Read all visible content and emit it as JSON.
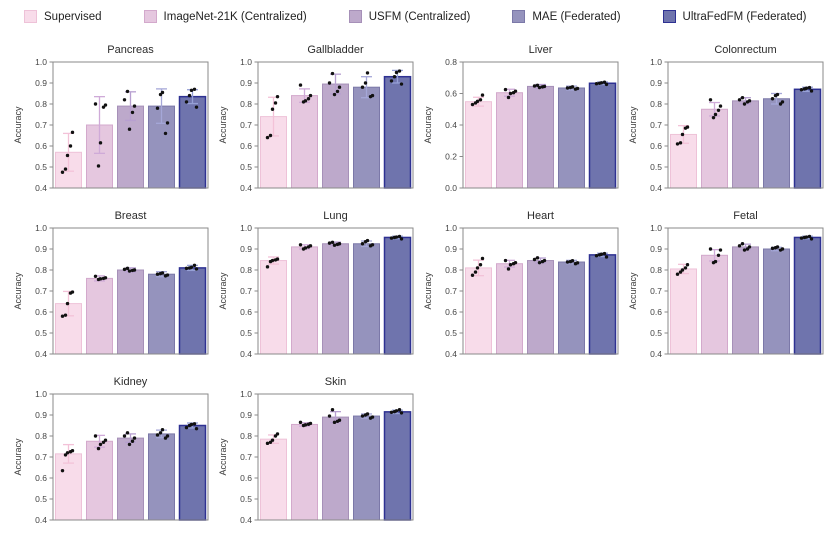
{
  "legend": {
    "items": [
      {
        "label": "Supervised"
      },
      {
        "label": "ImageNet-21K (Centralized)"
      },
      {
        "label": "USFM (Centralized)"
      },
      {
        "label": "MAE (Federated)"
      },
      {
        "label": "UltraFedFM (Federated)"
      }
    ]
  },
  "colors": {
    "fills": [
      "#f8dcea",
      "#e5c7df",
      "#bda9cb",
      "#9593bd",
      "#6f74ad"
    ],
    "edges": [
      "#eec2d8",
      "#d3a9cc",
      "#a690b8",
      "#7b78a8",
      "#2e3192"
    ],
    "error_bars": [
      "#f3c2d8",
      "#cfaad8",
      "#b79fd0",
      "#a5a7d8",
      "#96a0d6"
    ],
    "points": "#111111",
    "spine": "#8a8a8a",
    "tick_text": "#444444"
  },
  "chart_data": {
    "type": "bar",
    "ylabel": "Accuracy",
    "series_labels": [
      "Supervised",
      "ImageNet-21K (Centralized)",
      "USFM (Centralized)",
      "MAE (Federated)",
      "UltraFedFM (Federated)"
    ],
    "organs": [
      {
        "title": "Pancreas",
        "ylim": [
          0.4,
          1.0
        ],
        "yticks": [
          "0.4",
          "0.5",
          "0.6",
          "0.7",
          "0.8",
          "0.9",
          "1.0"
        ],
        "values": [
          0.57,
          0.7,
          0.79,
          0.79,
          0.835
        ],
        "errors": [
          0.09,
          0.135,
          0.068,
          0.082,
          0.033
        ],
        "points": [
          [
            0.475,
            0.49,
            0.555,
            0.6,
            0.665
          ],
          [
            0.505,
            0.615,
            0.785,
            0.795,
            0.8
          ],
          [
            0.68,
            0.76,
            0.79,
            0.82,
            0.86
          ],
          [
            0.66,
            0.71,
            0.78,
            0.845,
            0.855
          ],
          [
            0.785,
            0.81,
            0.84,
            0.865,
            0.87
          ]
        ]
      },
      {
        "title": "Gallbladder",
        "ylim": [
          0.4,
          1.0
        ],
        "yticks": [
          "0.4",
          "0.5",
          "0.6",
          "0.7",
          "0.8",
          "0.9",
          "1.0"
        ],
        "values": [
          0.74,
          0.84,
          0.895,
          0.88,
          0.93
        ],
        "errors": [
          0.092,
          0.032,
          0.047,
          0.05,
          0.03
        ],
        "points": [
          [
            0.64,
            0.65,
            0.775,
            0.805,
            0.835
          ],
          [
            0.81,
            0.815,
            0.825,
            0.84,
            0.89
          ],
          [
            0.845,
            0.86,
            0.88,
            0.9,
            0.945
          ],
          [
            0.835,
            0.84,
            0.88,
            0.9,
            0.948
          ],
          [
            0.895,
            0.91,
            0.93,
            0.95,
            0.957
          ]
        ]
      },
      {
        "title": "Liver",
        "ylim": [
          0.0,
          0.8
        ],
        "yticks": [
          "0.0",
          "0.2",
          "0.4",
          "0.6",
          "0.8"
        ],
        "values": [
          0.548,
          0.605,
          0.645,
          0.635,
          0.665
        ],
        "errors": [
          0.028,
          0.022,
          0.012,
          0.012,
          0.008
        ],
        "points": [
          [
            0.53,
            0.54,
            0.55,
            0.56,
            0.59
          ],
          [
            0.575,
            0.6,
            0.605,
            0.615,
            0.625
          ],
          [
            0.638,
            0.642,
            0.645,
            0.648,
            0.652
          ],
          [
            0.628,
            0.632,
            0.635,
            0.638,
            0.642
          ],
          [
            0.658,
            0.662,
            0.665,
            0.668,
            0.672
          ]
        ]
      },
      {
        "title": "Colonrectum",
        "ylim": [
          0.4,
          1.0
        ],
        "yticks": [
          "0.4",
          "0.5",
          "0.6",
          "0.7",
          "0.8",
          "0.9",
          "1.0"
        ],
        "values": [
          0.655,
          0.775,
          0.815,
          0.825,
          0.87
        ],
        "errors": [
          0.042,
          0.032,
          0.015,
          0.025,
          0.01
        ],
        "points": [
          [
            0.61,
            0.615,
            0.655,
            0.685,
            0.69
          ],
          [
            0.735,
            0.75,
            0.77,
            0.79,
            0.82
          ],
          [
            0.8,
            0.81,
            0.815,
            0.82,
            0.83
          ],
          [
            0.8,
            0.81,
            0.825,
            0.84,
            0.845
          ],
          [
            0.862,
            0.868,
            0.872,
            0.875,
            0.878
          ]
        ]
      },
      {
        "title": "Breast",
        "ylim": [
          0.4,
          1.0
        ],
        "yticks": [
          "0.4",
          "0.5",
          "0.6",
          "0.7",
          "0.8",
          "0.9",
          "1.0"
        ],
        "values": [
          0.64,
          0.76,
          0.8,
          0.78,
          0.81
        ],
        "errors": [
          0.058,
          0.012,
          0.01,
          0.012,
          0.012
        ],
        "points": [
          [
            0.58,
            0.585,
            0.64,
            0.69,
            0.695
          ],
          [
            0.755,
            0.758,
            0.76,
            0.763,
            0.77
          ],
          [
            0.795,
            0.798,
            0.8,
            0.803,
            0.808
          ],
          [
            0.772,
            0.776,
            0.78,
            0.783,
            0.786
          ],
          [
            0.805,
            0.808,
            0.81,
            0.813,
            0.822
          ]
        ]
      },
      {
        "title": "Lung",
        "ylim": [
          0.4,
          1.0
        ],
        "yticks": [
          "0.4",
          "0.5",
          "0.6",
          "0.7",
          "0.8",
          "0.9",
          "1.0"
        ],
        "values": [
          0.845,
          0.91,
          0.925,
          0.925,
          0.955
        ],
        "errors": [
          0.017,
          0.01,
          0.008,
          0.013,
          0.006
        ],
        "points": [
          [
            0.815,
            0.84,
            0.845,
            0.848,
            0.852
          ],
          [
            0.9,
            0.905,
            0.91,
            0.915,
            0.92
          ],
          [
            0.918,
            0.922,
            0.925,
            0.928,
            0.932
          ],
          [
            0.915,
            0.92,
            0.925,
            0.935,
            0.94
          ],
          [
            0.948,
            0.952,
            0.955,
            0.957,
            0.96
          ]
        ]
      },
      {
        "title": "Heart",
        "ylim": [
          0.4,
          1.0
        ],
        "yticks": [
          "0.4",
          "0.5",
          "0.6",
          "0.7",
          "0.8",
          "0.9",
          "1.0"
        ],
        "values": [
          0.81,
          0.83,
          0.845,
          0.838,
          0.872
        ],
        "errors": [
          0.037,
          0.016,
          0.012,
          0.008,
          0.008
        ],
        "points": [
          [
            0.775,
            0.79,
            0.81,
            0.825,
            0.855
          ],
          [
            0.805,
            0.825,
            0.83,
            0.835,
            0.845
          ],
          [
            0.835,
            0.84,
            0.845,
            0.85,
            0.858
          ],
          [
            0.83,
            0.834,
            0.838,
            0.84,
            0.844
          ],
          [
            0.862,
            0.868,
            0.872,
            0.875,
            0.878
          ]
        ]
      },
      {
        "title": "Fetal",
        "ylim": [
          0.4,
          1.0
        ],
        "yticks": [
          "0.4",
          "0.5",
          "0.6",
          "0.7",
          "0.8",
          "0.9",
          "1.0"
        ],
        "values": [
          0.805,
          0.87,
          0.91,
          0.9,
          0.955
        ],
        "errors": [
          0.022,
          0.027,
          0.013,
          0.008,
          0.006
        ],
        "points": [
          [
            0.78,
            0.79,
            0.8,
            0.81,
            0.825
          ],
          [
            0.835,
            0.84,
            0.87,
            0.895,
            0.9
          ],
          [
            0.895,
            0.9,
            0.91,
            0.915,
            0.925
          ],
          [
            0.895,
            0.9,
            0.903,
            0.906,
            0.91
          ],
          [
            0.948,
            0.952,
            0.955,
            0.957,
            0.96
          ]
        ]
      },
      {
        "title": "Kidney",
        "ylim": [
          0.4,
          1.0
        ],
        "yticks": [
          "0.4",
          "0.5",
          "0.6",
          "0.7",
          "0.8",
          "0.9",
          "1.0"
        ],
        "values": [
          0.715,
          0.775,
          0.79,
          0.81,
          0.85
        ],
        "errors": [
          0.044,
          0.028,
          0.02,
          0.018,
          0.012
        ],
        "points": [
          [
            0.635,
            0.71,
            0.72,
            0.725,
            0.73
          ],
          [
            0.74,
            0.76,
            0.77,
            0.78,
            0.8
          ],
          [
            0.76,
            0.775,
            0.79,
            0.8,
            0.815
          ],
          [
            0.79,
            0.8,
            0.805,
            0.815,
            0.83
          ],
          [
            0.835,
            0.84,
            0.85,
            0.855,
            0.858
          ]
        ]
      },
      {
        "title": "Skin",
        "ylim": [
          0.4,
          1.0
        ],
        "yticks": [
          "0.4",
          "0.5",
          "0.6",
          "0.7",
          "0.8",
          "0.9",
          "1.0"
        ],
        "values": [
          0.785,
          0.855,
          0.89,
          0.895,
          0.915
        ],
        "errors": [
          0.02,
          0.008,
          0.026,
          0.01,
          0.008
        ],
        "points": [
          [
            0.765,
            0.77,
            0.78,
            0.8,
            0.81
          ],
          [
            0.85,
            0.853,
            0.856,
            0.86,
            0.865
          ],
          [
            0.865,
            0.87,
            0.875,
            0.895,
            0.925
          ],
          [
            0.885,
            0.89,
            0.895,
            0.9,
            0.905
          ],
          [
            0.91,
            0.913,
            0.916,
            0.92,
            0.925
          ]
        ]
      }
    ]
  }
}
